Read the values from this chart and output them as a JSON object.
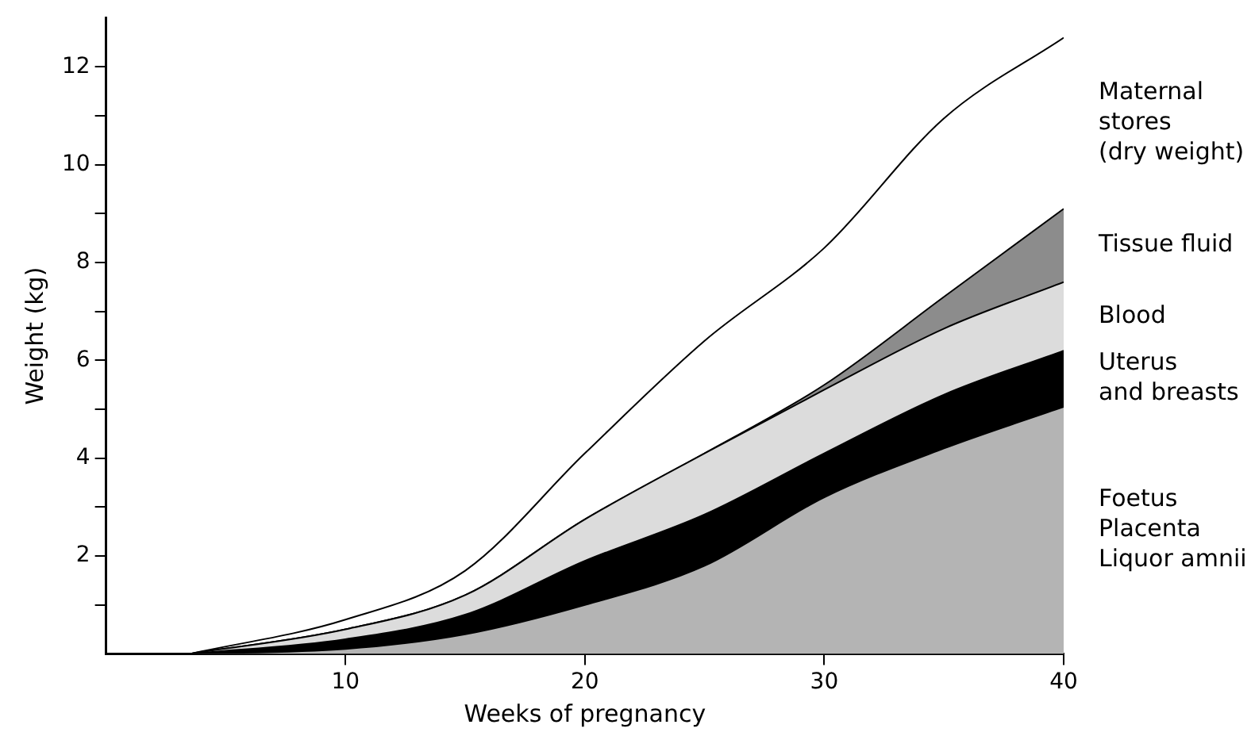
{
  "chart_data": {
    "type": "area",
    "stacked": true,
    "xlabel": "Weeks of pregnancy",
    "ylabel": "Weight (kg)",
    "x": [
      3.5,
      10,
      15,
      20,
      25,
      30,
      35,
      40
    ],
    "series": [
      {
        "name": "Foetus\nPlacenta\nLiquor amnii",
        "color": "#b4b4b4",
        "values": [
          0,
          0.1,
          0.4,
          1.0,
          1.8,
          3.2,
          4.2,
          5.05
        ]
      },
      {
        "name": "Uterus\nand breasts",
        "color": "#000000",
        "values": [
          0,
          0.2,
          0.4,
          0.9,
          1.05,
          0.9,
          1.1,
          1.15
        ]
      },
      {
        "name": "Blood",
        "color": "#dcdcdc",
        "values": [
          0,
          0.2,
          0.4,
          0.85,
          1.25,
          1.3,
          1.35,
          1.4
        ]
      },
      {
        "name": "Tissue fluid",
        "color": "#8c8c8c",
        "values": [
          0,
          0,
          0,
          0,
          0,
          0.1,
          0.65,
          1.5
        ]
      },
      {
        "name": "Maternal\nstores\n(dry weight)",
        "color": "#ffffff",
        "values": [
          0,
          0.2,
          0.5,
          1.35,
          2.3,
          2.8,
          3.65,
          3.5
        ]
      }
    ],
    "xlim": [
      0,
      40
    ],
    "xticks": [
      10,
      20,
      30,
      40
    ],
    "ylim": [
      0,
      13
    ],
    "yticks": [
      {
        "value": 1,
        "label": null
      },
      2,
      {
        "value": 3,
        "label": null
      },
      4,
      {
        "value": 5,
        "label": null
      },
      6,
      {
        "value": 7,
        "label": null
      },
      8,
      {
        "value": 9,
        "label": null
      },
      10,
      {
        "value": 11,
        "label": null
      },
      12
    ],
    "grid": false,
    "legend": false
  }
}
